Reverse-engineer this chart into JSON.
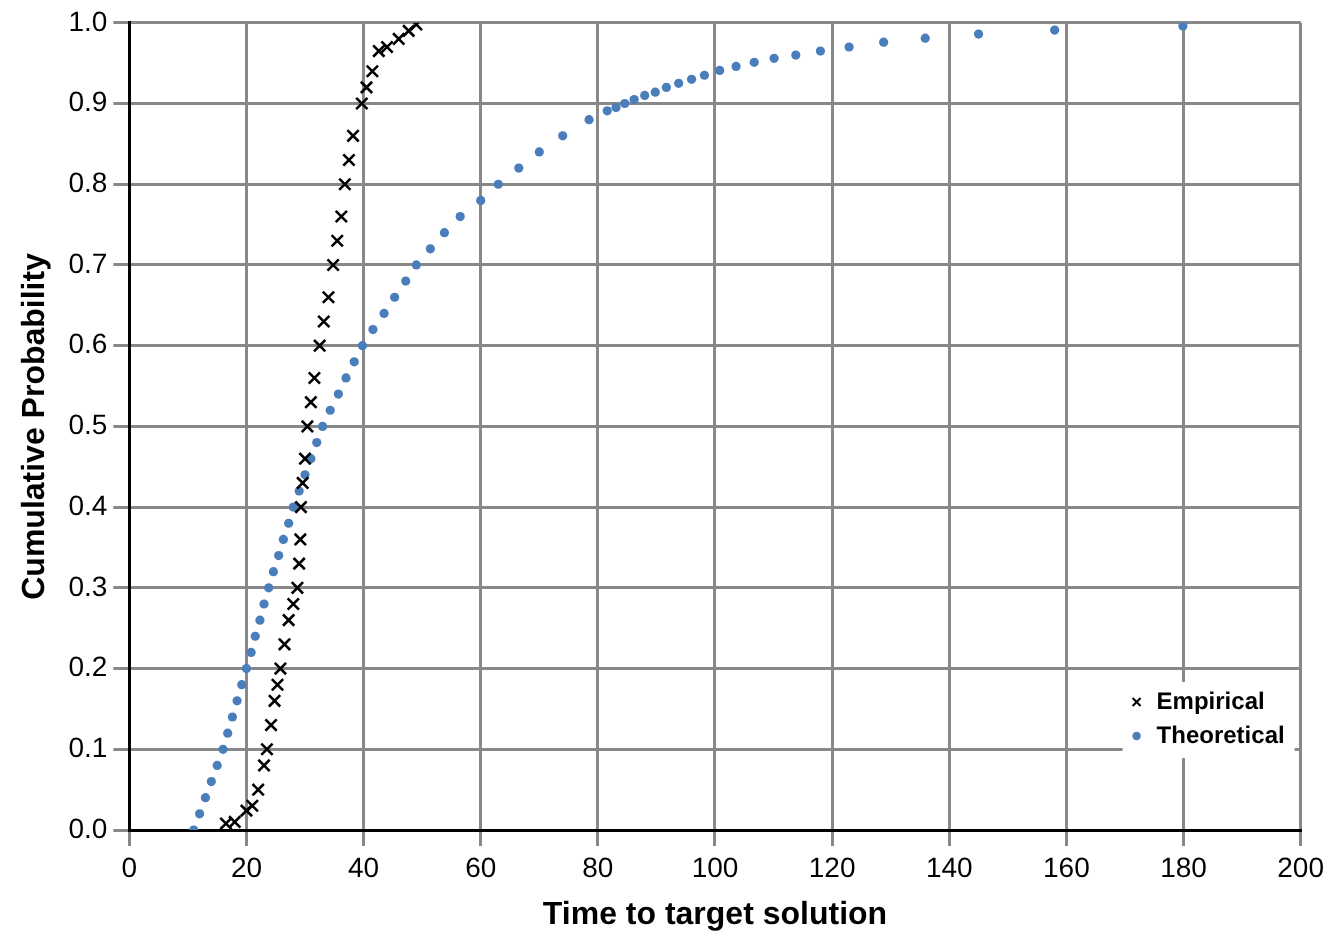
{
  "chart_data": {
    "type": "scatter",
    "xlabel": "Time to target solution",
    "ylabel": "Cumulative Probability",
    "xlim": [
      0,
      200
    ],
    "xticks": [
      0,
      20,
      40,
      60,
      80,
      100,
      120,
      140,
      160,
      180,
      200
    ],
    "ylim": [
      0,
      1
    ],
    "yticks": [
      {
        "value": 0,
        "label": "0.0"
      },
      0.1,
      0.2,
      0.3,
      0.4,
      0.5,
      0.6,
      0.7,
      0.8,
      0.9,
      {
        "value": 1,
        "label": "1.0"
      }
    ],
    "grid": true,
    "legend": "bottom right",
    "series": [
      {
        "name": "Empirical",
        "color": "#000000",
        "marker": "cross",
        "x": [
          16.5,
          18,
          20,
          21,
          22,
          23,
          23.5,
          24.2,
          24.8,
          25.3,
          25.8,
          26.5,
          27.2,
          28,
          28.7,
          29,
          29.2,
          29.3,
          29.6,
          30,
          30.4,
          31,
          31.6,
          32.5,
          33.2,
          34,
          34.8,
          35.5,
          36.2,
          36.8,
          37.5,
          38.2,
          39.7,
          40.5,
          41.5,
          42.6,
          44,
          46,
          47.7,
          49
        ],
        "values": [
          0.008,
          0.01,
          0.024,
          0.03,
          0.05,
          0.08,
          0.1,
          0.13,
          0.16,
          0.18,
          0.2,
          0.23,
          0.26,
          0.28,
          0.3,
          0.33,
          0.36,
          0.4,
          0.43,
          0.46,
          0.5,
          0.53,
          0.56,
          0.6,
          0.63,
          0.66,
          0.7,
          0.73,
          0.76,
          0.8,
          0.83,
          0.86,
          0.9,
          0.92,
          0.94,
          0.965,
          0.97,
          0.98,
          0.99,
          0.998
        ]
      },
      {
        "name": "Theoretical",
        "color": "#4a7ebb",
        "marker": "circle",
        "x": [
          11,
          12,
          13,
          14,
          15,
          16,
          16.8,
          17.6,
          18.4,
          19.2,
          20,
          20.8,
          21.5,
          22.3,
          23,
          23.8,
          24.6,
          25.5,
          26.3,
          27.2,
          28,
          29,
          30,
          31,
          32,
          33,
          34.3,
          35.7,
          37,
          38.4,
          39.8,
          41.6,
          43.5,
          45.3,
          47.2,
          49,
          51.4,
          53.8,
          56.5,
          60,
          63,
          66.5,
          70,
          74,
          78.5,
          81.6,
          83.1,
          84.6,
          86.2,
          88,
          89.8,
          91.7,
          93.8,
          96,
          98.2,
          100.8,
          103.6,
          106.7,
          110.1,
          113.8,
          118,
          122.9,
          128.8,
          135.9,
          145,
          158,
          179.9
        ],
        "values": [
          0,
          0.02,
          0.04,
          0.06,
          0.08,
          0.1,
          0.12,
          0.14,
          0.16,
          0.18,
          0.2,
          0.22,
          0.24,
          0.26,
          0.28,
          0.3,
          0.32,
          0.34,
          0.36,
          0.38,
          0.4,
          0.42,
          0.44,
          0.46,
          0.48,
          0.5,
          0.52,
          0.54,
          0.56,
          0.58,
          0.6,
          0.62,
          0.64,
          0.66,
          0.68,
          0.7,
          0.72,
          0.74,
          0.76,
          0.78,
          0.8,
          0.82,
          0.84,
          0.86,
          0.88,
          0.891,
          0.895,
          0.9,
          0.905,
          0.91,
          0.914,
          0.92,
          0.925,
          0.93,
          0.935,
          0.941,
          0.946,
          0.951,
          0.956,
          0.96,
          0.965,
          0.97,
          0.976,
          0.981,
          0.986,
          0.991,
          0.996
        ]
      }
    ]
  }
}
